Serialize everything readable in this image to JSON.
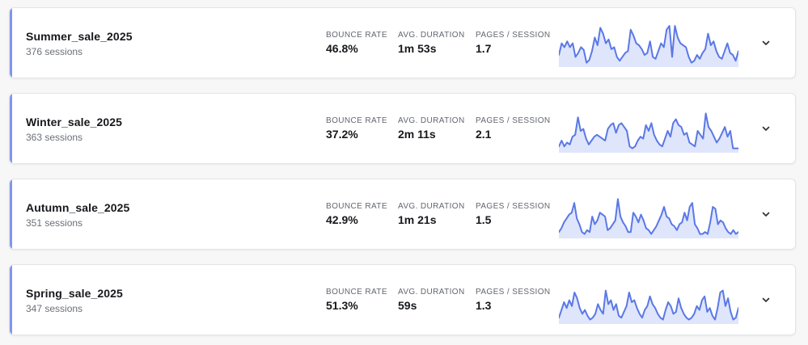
{
  "labels": {
    "bounce_rate": "BOUNCE RATE",
    "avg_duration": "AVG. DURATION",
    "pages_session": "PAGES / SESSION"
  },
  "colors": {
    "accent": "#7f96ee",
    "line": "#5a78e6",
    "fill": "#dfe5fb"
  },
  "campaigns": [
    {
      "name": "Summer_sale_2025",
      "sessions": "376 sessions",
      "bounce_rate": "46.8%",
      "avg_duration": "1m 53s",
      "pages_session": "1.7",
      "expand_icon": "chevron-down-icon",
      "trend": [
        0.25,
        0.55,
        0.45,
        0.6,
        0.45,
        0.55,
        0.2,
        0.3,
        0.45,
        0.38,
        0.05,
        0.12,
        0.35,
        0.7,
        0.5,
        0.95,
        0.8,
        0.55,
        0.65,
        0.4,
        0.45,
        0.2,
        0.1,
        0.2,
        0.3,
        0.35,
        0.9,
        0.75,
        0.55,
        0.5,
        0.4,
        0.25,
        0.3,
        0.6,
        0.2,
        0.15,
        0.35,
        0.55,
        0.45,
        0.9,
        1.0,
        0.2,
        1.0,
        0.7,
        0.55,
        0.5,
        0.45,
        0.2,
        0.05,
        0.1,
        0.25,
        0.15,
        0.3,
        0.4,
        0.8,
        0.5,
        0.6,
        0.35,
        0.2,
        0.15,
        0.35,
        0.55,
        0.3,
        0.25,
        0.1,
        0.35
      ]
    },
    {
      "name": "Winter_sale_2025",
      "sessions": "363 sessions",
      "bounce_rate": "37.2%",
      "avg_duration": "2m 11s",
      "pages_session": "2.1",
      "expand_icon": "chevron-down-icon",
      "trend": [
        0.1,
        0.25,
        0.1,
        0.2,
        0.15,
        0.35,
        0.4,
        0.85,
        0.5,
        0.55,
        0.3,
        0.15,
        0.25,
        0.35,
        0.4,
        0.35,
        0.3,
        0.25,
        0.55,
        0.65,
        0.7,
        0.45,
        0.65,
        0.7,
        0.6,
        0.5,
        0.1,
        0.05,
        0.1,
        0.25,
        0.35,
        0.3,
        0.65,
        0.5,
        0.7,
        0.4,
        0.25,
        0.15,
        0.1,
        0.3,
        0.5,
        0.35,
        0.7,
        0.8,
        0.65,
        0.6,
        0.4,
        0.45,
        0.2,
        0.15,
        0.1,
        0.5,
        0.4,
        0.3,
        0.95,
        0.6,
        0.5,
        0.35,
        0.2,
        0.3,
        0.45,
        0.6,
        0.35,
        0.5,
        0.05,
        0.05,
        0.05
      ]
    },
    {
      "name": "Autumn_sale_2025",
      "sessions": "351 sessions",
      "bounce_rate": "42.9%",
      "avg_duration": "1m 21s",
      "pages_session": "1.5",
      "expand_icon": "chevron-down-icon",
      "trend": [
        0.1,
        0.2,
        0.35,
        0.45,
        0.55,
        0.6,
        0.85,
        0.45,
        0.3,
        0.1,
        0.05,
        0.15,
        0.1,
        0.5,
        0.3,
        0.4,
        0.6,
        0.55,
        0.5,
        0.15,
        0.2,
        0.3,
        0.4,
        0.95,
        0.5,
        0.35,
        0.25,
        0.1,
        0.1,
        0.6,
        0.5,
        0.35,
        0.55,
        0.4,
        0.2,
        0.15,
        0.05,
        0.15,
        0.25,
        0.4,
        0.55,
        0.75,
        0.5,
        0.45,
        0.3,
        0.25,
        0.15,
        0.3,
        0.35,
        0.6,
        0.4,
        0.75,
        0.85,
        0.3,
        0.2,
        0.05,
        0.05,
        0.1,
        0.05,
        0.35,
        0.75,
        0.7,
        0.3,
        0.4,
        0.35,
        0.2,
        0.1,
        0.05,
        0.15,
        0.05,
        0.1
      ]
    },
    {
      "name": "Spring_sale_2025",
      "sessions": "347 sessions",
      "bounce_rate": "51.3%",
      "avg_duration": "59s",
      "pages_session": "1.3",
      "expand_icon": "chevron-down-icon",
      "trend": [
        0.1,
        0.3,
        0.5,
        0.35,
        0.55,
        0.4,
        0.75,
        0.6,
        0.35,
        0.2,
        0.3,
        0.15,
        0.05,
        0.1,
        0.2,
        0.45,
        0.3,
        0.2,
        0.8,
        0.45,
        0.55,
        0.3,
        0.45,
        0.15,
        0.1,
        0.25,
        0.4,
        0.75,
        0.5,
        0.55,
        0.35,
        0.2,
        0.1,
        0.3,
        0.4,
        0.65,
        0.45,
        0.35,
        0.2,
        0.1,
        0.05,
        0.3,
        0.5,
        0.4,
        0.2,
        0.25,
        0.6,
        0.35,
        0.2,
        0.1,
        0.05,
        0.1,
        0.2,
        0.4,
        0.3,
        0.55,
        0.65,
        0.25,
        0.35,
        0.15,
        0.05,
        0.35,
        0.75,
        0.8,
        0.4,
        0.6,
        0.25,
        0.05,
        0.1,
        0.35
      ]
    }
  ]
}
